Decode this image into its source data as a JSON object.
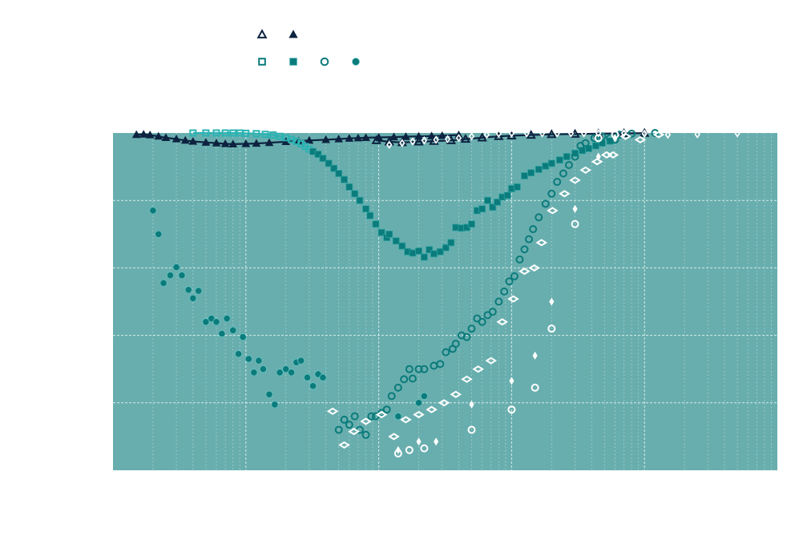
{
  "chart_data": {
    "type": "scatter",
    "title": "",
    "xlabel": "",
    "ylabel": "",
    "x_scale": "log",
    "xlim": [
      0.01,
      1000
    ],
    "ylim": [
      0,
      1
    ],
    "grid": true,
    "legend_placement": "top-center",
    "colors": {
      "background": "#69aeae",
      "navy": "#0d2340",
      "teal_dark": "#0b7b7b",
      "teal_light": "#2bb3b3",
      "white": "#ffffff",
      "grid": "#dbeeee"
    },
    "legend": [
      {
        "marker": "triangle-open",
        "color": "#0d2340"
      },
      {
        "marker": "triangle-filled",
        "color": "#0d2340"
      },
      {
        "marker": "square-open",
        "color": "#0b7b7b"
      },
      {
        "marker": "square-filled",
        "color": "#0b7b7b"
      },
      {
        "marker": "circle-open",
        "color": "#0b7b7b"
      },
      {
        "marker": "circle-filled",
        "color": "#0b7b7b"
      }
    ],
    "series": [
      {
        "id": "s1",
        "marker": "triangle-open",
        "color": "#0d2340",
        "line": true,
        "points": [
          [
            0.96,
            0.978
          ],
          [
            1.2,
            0.974
          ],
          [
            1.5,
            0.972
          ],
          [
            2,
            0.974
          ],
          [
            2.6,
            0.976
          ],
          [
            3.5,
            0.978
          ],
          [
            4.5,
            0.982
          ],
          [
            6,
            0.986
          ],
          [
            8,
            0.99
          ],
          [
            10,
            0.992
          ],
          [
            14,
            0.994
          ],
          [
            20,
            0.996
          ],
          [
            30,
            0.997
          ],
          [
            45,
            0.998
          ],
          [
            70,
            0.999
          ],
          [
            100,
            0.9995
          ]
        ]
      },
      {
        "id": "s2",
        "marker": "triangle-filled",
        "color": "#0d2340",
        "line": true,
        "points": [
          [
            0.015,
            0.995
          ],
          [
            0.017,
            0.996
          ],
          [
            0.019,
            0.994
          ],
          [
            0.022,
            0.99
          ],
          [
            0.025,
            0.986
          ],
          [
            0.03,
            0.982
          ],
          [
            0.035,
            0.978
          ],
          [
            0.04,
            0.975
          ],
          [
            0.05,
            0.972
          ],
          [
            0.06,
            0.97
          ],
          [
            0.07,
            0.968
          ],
          [
            0.08,
            0.967
          ],
          [
            0.1,
            0.968
          ],
          [
            0.12,
            0.969
          ],
          [
            0.15,
            0.971
          ],
          [
            0.2,
            0.974
          ],
          [
            0.25,
            0.976
          ],
          [
            0.3,
            0.978
          ],
          [
            0.4,
            0.98
          ],
          [
            0.5,
            0.982
          ],
          [
            0.6,
            0.984
          ],
          [
            0.7,
            0.985
          ],
          [
            0.8,
            0.986
          ],
          [
            1.0,
            0.987
          ],
          [
            1.3,
            0.988
          ],
          [
            1.6,
            0.989
          ],
          [
            2.0,
            0.99
          ],
          [
            2.5,
            0.991
          ],
          [
            3.0,
            0.992
          ],
          [
            4.0,
            0.994
          ]
        ]
      },
      {
        "id": "s3",
        "marker": "square-open",
        "color": "#2bb3b3",
        "line": true,
        "points": [
          [
            0.04,
            1.0
          ],
          [
            0.05,
            1.0
          ],
          [
            0.06,
            1.0
          ],
          [
            0.07,
            1.0
          ],
          [
            0.08,
            1.0
          ],
          [
            0.09,
            1.0
          ],
          [
            0.1,
            0.999
          ],
          [
            0.12,
            0.998
          ],
          [
            0.14,
            0.996
          ],
          [
            0.16,
            0.994
          ],
          [
            0.18,
            0.99
          ],
          [
            0.2,
            0.986
          ],
          [
            0.22,
            0.981
          ],
          [
            0.24,
            0.975
          ],
          [
            0.26,
            0.968
          ],
          [
            0.28,
            0.96
          ],
          [
            0.3,
            0.952
          ]
        ]
      },
      {
        "id": "s4",
        "marker": "square-filled",
        "color": "#0b7b7b",
        "line": false,
        "points": [
          [
            0.32,
            0.945
          ],
          [
            0.35,
            0.937
          ],
          [
            0.38,
            0.925
          ],
          [
            0.42,
            0.91
          ],
          [
            0.46,
            0.895
          ],
          [
            0.5,
            0.88
          ],
          [
            0.55,
            0.862
          ],
          [
            0.6,
            0.84
          ],
          [
            0.66,
            0.82
          ],
          [
            0.72,
            0.8
          ],
          [
            0.8,
            0.775
          ],
          [
            0.86,
            0.755
          ],
          [
            0.95,
            0.73
          ],
          [
            1.05,
            0.705
          ],
          [
            1.15,
            0.69
          ],
          [
            1.2,
            0.7
          ],
          [
            1.35,
            0.68
          ],
          [
            1.5,
            0.665
          ],
          [
            1.65,
            0.648
          ],
          [
            1.8,
            0.644
          ],
          [
            2.0,
            0.65
          ],
          [
            2.2,
            0.632
          ],
          [
            2.4,
            0.654
          ],
          [
            2.6,
            0.642
          ],
          [
            2.9,
            0.648
          ],
          [
            3.2,
            0.66
          ],
          [
            3.5,
            0.675
          ],
          [
            3.8,
            0.72
          ],
          [
            4.2,
            0.718
          ],
          [
            4.6,
            0.72
          ],
          [
            5.0,
            0.73
          ],
          [
            5.5,
            0.77
          ],
          [
            6.0,
            0.775
          ],
          [
            6.6,
            0.8
          ],
          [
            7.2,
            0.78
          ],
          [
            7.8,
            0.795
          ],
          [
            8.5,
            0.81
          ],
          [
            9.3,
            0.815
          ],
          [
            10,
            0.835
          ],
          [
            11,
            0.84
          ],
          [
            12.5,
            0.873
          ],
          [
            14,
            0.882
          ],
          [
            16,
            0.892
          ],
          [
            18,
            0.902
          ],
          [
            20,
            0.91
          ],
          [
            23,
            0.92
          ],
          [
            26,
            0.93
          ],
          [
            30,
            0.94
          ],
          [
            34,
            0.948
          ],
          [
            38,
            0.954
          ],
          [
            43,
            0.962
          ],
          [
            48,
            0.97
          ],
          [
            55,
            0.976
          ]
        ]
      },
      {
        "id": "s5",
        "marker": "circle-open",
        "color": "#0b7b7b",
        "line": false,
        "points": [
          [
            0.5,
            0.12
          ],
          [
            0.55,
            0.15
          ],
          [
            0.6,
            0.135
          ],
          [
            0.66,
            0.16
          ],
          [
            0.72,
            0.12
          ],
          [
            0.8,
            0.105
          ],
          [
            0.88,
            0.16
          ],
          [
            0.95,
            0.16
          ],
          [
            1.05,
            0.17
          ],
          [
            1.15,
            0.18
          ],
          [
            1.25,
            0.22
          ],
          [
            1.4,
            0.245
          ],
          [
            1.55,
            0.27
          ],
          [
            1.7,
            0.3
          ],
          [
            1.8,
            0.272
          ],
          [
            2.0,
            0.3
          ],
          [
            2.2,
            0.3
          ],
          [
            2.6,
            0.31
          ],
          [
            2.9,
            0.315
          ],
          [
            3.2,
            0.35
          ],
          [
            3.6,
            0.36
          ],
          [
            3.8,
            0.375
          ],
          [
            4.2,
            0.4
          ],
          [
            4.6,
            0.395
          ],
          [
            5.0,
            0.42
          ],
          [
            5.5,
            0.45
          ],
          [
            6.0,
            0.44
          ],
          [
            6.6,
            0.46
          ],
          [
            7.2,
            0.47
          ],
          [
            8.0,
            0.5
          ],
          [
            8.8,
            0.53
          ],
          [
            9.6,
            0.56
          ],
          [
            10.5,
            0.575
          ],
          [
            11.5,
            0.625
          ],
          [
            12.5,
            0.655
          ],
          [
            13.5,
            0.685
          ],
          [
            14.5,
            0.715
          ],
          [
            16,
            0.75
          ],
          [
            18,
            0.79
          ],
          [
            20,
            0.82
          ],
          [
            22,
            0.855
          ],
          [
            24.5,
            0.88
          ],
          [
            27,
            0.905
          ],
          [
            30,
            0.93
          ],
          [
            33,
            0.962
          ],
          [
            36,
            0.97
          ],
          [
            42,
            0.985
          ],
          [
            48,
            0.99
          ],
          [
            55,
            0.985
          ],
          [
            60,
            0.98
          ],
          [
            65,
            0.995
          ],
          [
            80,
            0.998
          ],
          [
            120,
            1.0
          ]
        ]
      },
      {
        "id": "s6",
        "marker": "circle-filled",
        "color": "#0b7b7b",
        "line": false,
        "points": [
          [
            0.02,
            0.77
          ],
          [
            0.022,
            0.7
          ],
          [
            0.024,
            0.555
          ],
          [
            0.027,
            0.578
          ],
          [
            0.03,
            0.602
          ],
          [
            0.033,
            0.578
          ],
          [
            0.037,
            0.535
          ],
          [
            0.04,
            0.51
          ],
          [
            0.044,
            0.532
          ],
          [
            0.05,
            0.44
          ],
          [
            0.055,
            0.45
          ],
          [
            0.06,
            0.44
          ],
          [
            0.066,
            0.405
          ],
          [
            0.072,
            0.45
          ],
          [
            0.08,
            0.415
          ],
          [
            0.088,
            0.345
          ],
          [
            0.095,
            0.395
          ],
          [
            0.105,
            0.33
          ],
          [
            0.115,
            0.29
          ],
          [
            0.125,
            0.325
          ],
          [
            0.135,
            0.3
          ],
          [
            0.15,
            0.225
          ],
          [
            0.165,
            0.195
          ],
          [
            0.18,
            0.29
          ],
          [
            0.2,
            0.3
          ],
          [
            0.22,
            0.29
          ],
          [
            0.24,
            0.32
          ],
          [
            0.26,
            0.325
          ],
          [
            0.29,
            0.275
          ],
          [
            0.32,
            0.25
          ],
          [
            0.35,
            0.285
          ],
          [
            0.38,
            0.275
          ],
          [
            1.4,
            0.16
          ],
          [
            2.0,
            0.2
          ],
          [
            2.2,
            0.22
          ]
        ]
      },
      {
        "id": "s7",
        "marker": "diamond-open",
        "color": "#ffffff",
        "line": false,
        "points": [
          [
            0.45,
            0.175
          ],
          [
            0.55,
            0.075
          ],
          [
            0.65,
            0.115
          ],
          [
            0.8,
            0.145
          ],
          [
            1.05,
            0.165
          ],
          [
            1.3,
            0.1
          ],
          [
            1.6,
            0.15
          ],
          [
            2.0,
            0.165
          ],
          [
            2.5,
            0.18
          ],
          [
            3.1,
            0.2
          ],
          [
            3.8,
            0.225
          ],
          [
            4.6,
            0.27
          ],
          [
            5.6,
            0.3
          ],
          [
            7,
            0.325
          ],
          [
            8.5,
            0.44
          ],
          [
            10.3,
            0.508
          ],
          [
            12.5,
            0.59
          ],
          [
            14.8,
            0.6
          ],
          [
            16.8,
            0.675
          ],
          [
            20.3,
            0.77
          ],
          [
            25,
            0.82
          ],
          [
            30,
            0.86
          ],
          [
            36,
            0.89
          ],
          [
            44,
            0.915
          ],
          [
            52,
            0.935
          ],
          [
            58,
            0.935
          ],
          [
            72,
            0.99
          ],
          [
            93,
            0.98
          ],
          [
            128,
            0.995
          ]
        ]
      },
      {
        "id": "s8",
        "marker": "circle-open",
        "color": "#ffffff",
        "line": false,
        "points": [
          [
            1.4,
            0.05
          ],
          [
            1.7,
            0.06
          ],
          [
            2.2,
            0.065
          ],
          [
            5,
            0.12
          ],
          [
            10,
            0.18
          ],
          [
            15,
            0.245
          ],
          [
            20,
            0.42
          ],
          [
            30,
            0.73
          ],
          [
            45,
            0.985
          ],
          [
            60,
            0.995
          ]
        ]
      },
      {
        "id": "s9",
        "marker": "plus",
        "color": "#ffffff",
        "line": false,
        "points": [
          [
            1.4,
            0.06
          ],
          [
            2.0,
            0.085
          ],
          [
            2.7,
            0.085
          ],
          [
            5,
            0.195
          ],
          [
            10,
            0.265
          ],
          [
            15,
            0.34
          ],
          [
            20,
            0.5
          ],
          [
            30,
            0.775
          ],
          [
            45,
            0.93
          ],
          [
            60,
            0.985
          ]
        ]
      },
      {
        "id": "s10",
        "marker": "diamond-small",
        "color": "#ffffff",
        "line": false,
        "points": [
          [
            1.2,
            0.965
          ],
          [
            1.5,
            0.97
          ],
          [
            1.8,
            0.975
          ],
          [
            2.2,
            0.978
          ],
          [
            2.7,
            0.98
          ],
          [
            3.3,
            0.982
          ],
          [
            4.0,
            0.985
          ],
          [
            5,
            0.99
          ],
          [
            6.5,
            0.995
          ],
          [
            8,
            0.998
          ],
          [
            10,
            0.999
          ],
          [
            13,
            0.999
          ],
          [
            17,
            0.999
          ],
          [
            22,
            0.999
          ],
          [
            28,
            0.999
          ],
          [
            35,
            0.999
          ],
          [
            45,
            0.999
          ],
          [
            70,
            0.999
          ],
          [
            100,
            0.998
          ],
          [
            150,
            0.995
          ],
          [
            250,
            0.996
          ],
          [
            500,
            0.999
          ]
        ]
      }
    ]
  }
}
